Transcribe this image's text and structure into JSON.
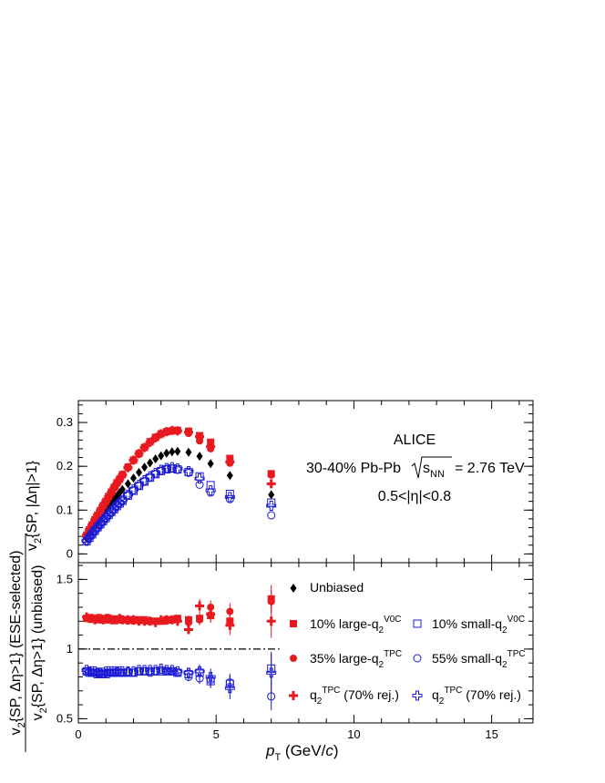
{
  "annotations": {
    "experiment": "ALICE",
    "system_prefix": "30-40% Pb-Pb",
    "sqrt_s": "s",
    "sqrt_s_sub": "NN",
    "energy": "= 2.76 TeV",
    "eta_range": "0.5<|η|<0.8"
  },
  "top_ylabel": {
    "base": "v",
    "sub": "2",
    "rest": "{SP, |Δη|>1}"
  },
  "bottom_ylabel": {
    "num_base": "v",
    "num_sub": "2",
    "num_rest": "{SP, Δη>1} (ESE-selected)",
    "den_base": "v",
    "den_sub": "2",
    "den_rest": "{SP, Δη>1} (unbiased)"
  },
  "xlabel": {
    "base": "p",
    "sub": "T",
    "rest": " (GeV/",
    "unit_c": "c",
    "close": ")"
  },
  "legend": {
    "unbiased": "Unbiased",
    "large_v0c_pre": "10% large-q",
    "large_v0c_sub": "2",
    "large_v0c_sup": "V0C",
    "small_v0c_pre": "10% small-q",
    "small_v0c_sub": "2",
    "small_v0c_sup": "V0C",
    "large_tpc_pre": "35% large-q",
    "large_tpc_sub": "2",
    "large_tpc_sup": "TPC",
    "small_tpc_pre": "55% small-q",
    "small_tpc_sub": "2",
    "small_tpc_sup": "TPC",
    "rej_red_pre": "q",
    "rej_red_sub": "2",
    "rej_red_sup": "TPC",
    "rej_red_post": " (70% rej.)",
    "rej_blue_pre": "q",
    "rej_blue_sub": "2",
    "rej_blue_sup": "TPC",
    "rej_blue_post": " (70% rej.)"
  },
  "chart_data": [
    {
      "type": "scatter",
      "panel": "top",
      "xlim": [
        0,
        16.5
      ],
      "ylim": [
        -0.02,
        0.35
      ],
      "x_ticks": [
        0,
        5,
        10,
        15
      ],
      "y_ticks": [
        0,
        0.1,
        0.2,
        0.3
      ],
      "y_tick_labels": [
        "0",
        "0.1",
        "0.2",
        "0.3"
      ],
      "colors": {
        "red": "#e8191f",
        "blue": "#1b1bd4",
        "black": "#000000"
      },
      "x": [
        0.3,
        0.4,
        0.5,
        0.6,
        0.7,
        0.8,
        0.9,
        1.0,
        1.1,
        1.2,
        1.3,
        1.4,
        1.5,
        1.6,
        1.8,
        2.0,
        2.2,
        2.4,
        2.6,
        2.8,
        3.0,
        3.2,
        3.4,
        3.6,
        4.0,
        4.4,
        4.8,
        5.5,
        7.0
      ],
      "series": [
        {
          "name": "Unbiased",
          "marker": "diamond",
          "color": "black",
          "values": [
            0.035,
            0.045,
            0.055,
            0.065,
            0.074,
            0.083,
            0.092,
            0.1,
            0.108,
            0.117,
            0.125,
            0.132,
            0.14,
            0.147,
            0.16,
            0.173,
            0.186,
            0.198,
            0.208,
            0.217,
            0.224,
            0.23,
            0.233,
            0.234,
            0.232,
            0.223,
            0.206,
            0.179,
            0.135
          ]
        },
        {
          "name": "10% large-q2V0C",
          "marker": "square-filled",
          "color": "red",
          "values": [
            0.043,
            0.055,
            0.066,
            0.078,
            0.088,
            0.099,
            0.11,
            0.12,
            0.131,
            0.141,
            0.152,
            0.162,
            0.171,
            0.181,
            0.198,
            0.214,
            0.229,
            0.243,
            0.256,
            0.266,
            0.274,
            0.279,
            0.281,
            0.282,
            0.28,
            0.27,
            0.255,
            0.218,
            0.183
          ]
        },
        {
          "name": "35% large-q2TPC",
          "marker": "circle-filled",
          "color": "red",
          "values": [
            0.042,
            0.054,
            0.066,
            0.077,
            0.088,
            0.098,
            0.109,
            0.119,
            0.13,
            0.14,
            0.15,
            0.16,
            0.17,
            0.18,
            0.197,
            0.213,
            0.228,
            0.242,
            0.254,
            0.264,
            0.273,
            0.278,
            0.28,
            0.281,
            0.275,
            0.258,
            0.24,
            0.207,
            0.18
          ]
        },
        {
          "name": "q2TPC (70% rej.) red",
          "marker": "cross-filled",
          "color": "red",
          "values": [
            0.043,
            0.055,
            0.066,
            0.078,
            0.089,
            0.099,
            0.11,
            0.121,
            0.131,
            0.141,
            0.151,
            0.161,
            0.171,
            0.18,
            0.197,
            0.214,
            0.229,
            0.243,
            0.255,
            0.265,
            0.274,
            0.279,
            0.282,
            0.281,
            0.278,
            0.268,
            0.245,
            0.21,
            0.16
          ]
        },
        {
          "name": "10% small-q2V0C",
          "marker": "square-open",
          "color": "blue",
          "values": [
            0.029,
            0.037,
            0.045,
            0.053,
            0.061,
            0.068,
            0.075,
            0.082,
            0.089,
            0.096,
            0.102,
            0.109,
            0.115,
            0.121,
            0.133,
            0.144,
            0.155,
            0.165,
            0.174,
            0.182,
            0.189,
            0.193,
            0.195,
            0.193,
            0.187,
            0.177,
            0.157,
            0.137,
            0.117
          ]
        },
        {
          "name": "55% small-q2TPC",
          "marker": "circle-open",
          "color": "blue",
          "values": [
            0.03,
            0.038,
            0.046,
            0.054,
            0.061,
            0.069,
            0.076,
            0.083,
            0.09,
            0.096,
            0.103,
            0.11,
            0.116,
            0.122,
            0.134,
            0.145,
            0.156,
            0.166,
            0.175,
            0.183,
            0.19,
            0.194,
            0.195,
            0.192,
            0.185,
            0.158,
            0.14,
            0.125,
            0.088
          ]
        },
        {
          "name": "q2TPC (70% rej.) blue",
          "marker": "cross-open",
          "color": "blue",
          "values": [
            0.03,
            0.038,
            0.046,
            0.054,
            0.061,
            0.069,
            0.076,
            0.083,
            0.09,
            0.097,
            0.104,
            0.11,
            0.117,
            0.123,
            0.135,
            0.147,
            0.158,
            0.168,
            0.177,
            0.185,
            0.192,
            0.196,
            0.198,
            0.195,
            0.189,
            0.172,
            0.145,
            0.13,
            0.11
          ]
        }
      ]
    },
    {
      "type": "scatter",
      "panel": "bottom",
      "xlim": [
        0,
        16.5
      ],
      "ylim": [
        0.47,
        1.62
      ],
      "x_ticks": [
        0,
        5,
        10,
        15
      ],
      "x_tick_labels": [
        "0",
        "5",
        "10",
        "15"
      ],
      "y_ticks": [
        0.5,
        1.0,
        1.5
      ],
      "y_tick_labels": [
        "0.5",
        "1",
        "1.5"
      ],
      "reference_line": {
        "y": 1.0,
        "x_range": [
          0,
          7.3
        ],
        "style": "dash-dot"
      },
      "x": [
        0.3,
        0.4,
        0.5,
        0.6,
        0.7,
        0.8,
        0.9,
        1.0,
        1.1,
        1.2,
        1.3,
        1.4,
        1.5,
        1.6,
        1.8,
        2.0,
        2.2,
        2.4,
        2.6,
        2.8,
        3.0,
        3.2,
        3.4,
        3.6,
        4.0,
        4.4,
        4.8,
        5.5,
        7.0
      ],
      "series": [
        {
          "name": "10% large-q2V0C",
          "marker": "square-filled",
          "color": "red",
          "values": [
            1.22,
            1.22,
            1.22,
            1.22,
            1.21,
            1.22,
            1.21,
            1.21,
            1.22,
            1.21,
            1.21,
            1.21,
            1.21,
            1.21,
            1.21,
            1.21,
            1.21,
            1.21,
            1.2,
            1.2,
            1.2,
            1.21,
            1.21,
            1.22,
            1.21,
            1.22,
            1.24,
            1.2,
            1.36
          ],
          "yerr": [
            0.01,
            0.01,
            0.01,
            0.01,
            0.01,
            0.01,
            0.01,
            0.01,
            0.01,
            0.01,
            0.01,
            0.01,
            0.01,
            0.01,
            0.01,
            0.01,
            0.01,
            0.01,
            0.01,
            0.01,
            0.01,
            0.02,
            0.02,
            0.02,
            0.03,
            0.04,
            0.05,
            0.06,
            0.1
          ]
        },
        {
          "name": "35% large-q2TPC",
          "marker": "circle-filled",
          "color": "red",
          "values": [
            1.22,
            1.22,
            1.22,
            1.22,
            1.22,
            1.21,
            1.21,
            1.21,
            1.21,
            1.21,
            1.21,
            1.21,
            1.21,
            1.21,
            1.2,
            1.2,
            1.2,
            1.2,
            1.2,
            1.2,
            1.2,
            1.2,
            1.21,
            1.21,
            1.19,
            1.21,
            1.3,
            1.27,
            1.34
          ],
          "yerr": [
            0.01,
            0.01,
            0.01,
            0.01,
            0.01,
            0.01,
            0.01,
            0.01,
            0.01,
            0.01,
            0.01,
            0.01,
            0.01,
            0.01,
            0.01,
            0.01,
            0.01,
            0.01,
            0.01,
            0.01,
            0.01,
            0.02,
            0.02,
            0.02,
            0.03,
            0.04,
            0.05,
            0.06,
            0.08
          ]
        },
        {
          "name": "q2TPC (70% rej.) red",
          "marker": "cross-filled",
          "color": "red",
          "values": [
            1.23,
            1.22,
            1.22,
            1.21,
            1.22,
            1.22,
            1.21,
            1.22,
            1.22,
            1.21,
            1.21,
            1.21,
            1.22,
            1.21,
            1.21,
            1.21,
            1.2,
            1.2,
            1.2,
            1.19,
            1.21,
            1.21,
            1.21,
            1.2,
            1.14,
            1.31,
            1.25,
            1.17,
            1.2
          ],
          "yerr": [
            0.01,
            0.01,
            0.01,
            0.01,
            0.01,
            0.01,
            0.01,
            0.01,
            0.01,
            0.01,
            0.01,
            0.01,
            0.01,
            0.01,
            0.01,
            0.01,
            0.01,
            0.01,
            0.01,
            0.01,
            0.01,
            0.02,
            0.02,
            0.02,
            0.03,
            0.05,
            0.06,
            0.07,
            0.12
          ]
        },
        {
          "name": "10% small-q2V0C",
          "marker": "square-open",
          "color": "blue",
          "values": [
            0.84,
            0.83,
            0.83,
            0.83,
            0.82,
            0.82,
            0.82,
            0.82,
            0.83,
            0.83,
            0.83,
            0.83,
            0.83,
            0.83,
            0.83,
            0.83,
            0.84,
            0.84,
            0.84,
            0.84,
            0.84,
            0.84,
            0.84,
            0.83,
            0.82,
            0.83,
            0.77,
            0.75,
            0.86
          ],
          "yerr": [
            0.01,
            0.01,
            0.01,
            0.01,
            0.01,
            0.01,
            0.01,
            0.01,
            0.01,
            0.01,
            0.01,
            0.01,
            0.01,
            0.01,
            0.01,
            0.01,
            0.01,
            0.01,
            0.01,
            0.01,
            0.01,
            0.02,
            0.02,
            0.02,
            0.03,
            0.04,
            0.05,
            0.07,
            0.12
          ]
        },
        {
          "name": "55% small-q2TPC",
          "marker": "circle-open",
          "color": "blue",
          "values": [
            0.84,
            0.84,
            0.83,
            0.83,
            0.83,
            0.83,
            0.82,
            0.83,
            0.83,
            0.83,
            0.83,
            0.84,
            0.83,
            0.83,
            0.84,
            0.83,
            0.84,
            0.84,
            0.83,
            0.84,
            0.85,
            0.84,
            0.84,
            0.83,
            0.8,
            0.79,
            0.78,
            0.76,
            0.66
          ],
          "yerr": [
            0.01,
            0.01,
            0.01,
            0.01,
            0.01,
            0.01,
            0.01,
            0.01,
            0.01,
            0.01,
            0.01,
            0.01,
            0.01,
            0.01,
            0.01,
            0.01,
            0.01,
            0.01,
            0.01,
            0.01,
            0.01,
            0.02,
            0.02,
            0.02,
            0.03,
            0.04,
            0.05,
            0.06,
            0.1
          ]
        },
        {
          "name": "q2TPC (70% rej.) blue",
          "marker": "cross-open",
          "color": "blue",
          "values": [
            0.85,
            0.84,
            0.84,
            0.84,
            0.83,
            0.83,
            0.83,
            0.84,
            0.84,
            0.84,
            0.84,
            0.84,
            0.84,
            0.84,
            0.84,
            0.84,
            0.85,
            0.85,
            0.85,
            0.85,
            0.86,
            0.85,
            0.85,
            0.84,
            0.83,
            0.84,
            0.8,
            0.72,
            0.83
          ],
          "yerr": [
            0.01,
            0.01,
            0.01,
            0.01,
            0.01,
            0.01,
            0.01,
            0.01,
            0.01,
            0.01,
            0.01,
            0.01,
            0.01,
            0.01,
            0.01,
            0.01,
            0.01,
            0.01,
            0.01,
            0.01,
            0.01,
            0.02,
            0.02,
            0.02,
            0.03,
            0.05,
            0.06,
            0.08,
            0.14
          ]
        }
      ]
    }
  ]
}
